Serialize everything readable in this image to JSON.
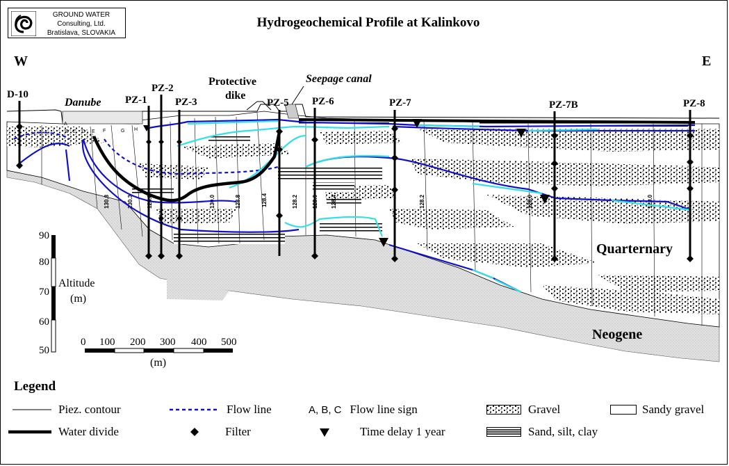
{
  "header": {
    "logo_lines": [
      "GROUND WATER",
      "Consulting, Ltd.",
      "Bratislava, SLOVAKIA"
    ],
    "title": "Hydrogeochemical Profile at Kalinkovo",
    "logo_icon": "spiral-logo-icon"
  },
  "profile": {
    "west_label": "W",
    "east_label": "E",
    "wells": [
      {
        "label": "D-10"
      },
      {
        "label": "PZ-1"
      },
      {
        "label": "PZ-2"
      },
      {
        "label": "PZ-3"
      },
      {
        "label": "PZ-5"
      },
      {
        "label": "PZ-6"
      },
      {
        "label": "PZ-7"
      },
      {
        "label": "PZ-7B"
      },
      {
        "label": "PZ-8"
      }
    ],
    "features": {
      "danube": "Danube",
      "dike_line1": "Protective",
      "dike_line2": "dike",
      "seepage_canal": "Seepage canal",
      "quarternary": "Quarternary",
      "neogene": "Neogene"
    },
    "flow_line_signs": [
      "A",
      "B",
      "C",
      "D",
      "E",
      "F",
      "G",
      "H"
    ],
    "contour_values": [
      "130.8",
      "130.3",
      "128.8",
      "130.0",
      "128.8",
      "128.4",
      "128.2",
      "128.0",
      "128.4",
      "128.2",
      "128.0",
      "128.0"
    ]
  },
  "altitude_scale": {
    "ticks": [
      "90",
      "80",
      "70",
      "60",
      "50"
    ],
    "label_line1": "Altitude",
    "label_line2": "(m)"
  },
  "distance_scale": {
    "ticks": [
      "0",
      "100",
      "200",
      "300",
      "400",
      "500"
    ],
    "unit": "(m)"
  },
  "legend": {
    "title": "Legend",
    "items": [
      {
        "key": "piez",
        "label": "Piez. contour"
      },
      {
        "key": "flow",
        "label": "Flow line"
      },
      {
        "key": "sign",
        "symbol": "A, B, C",
        "label": "Flow line sign"
      },
      {
        "key": "gravel",
        "label": "Gravel"
      },
      {
        "key": "sandy",
        "label": "Sandy gravel"
      },
      {
        "key": "divide",
        "label": "Water divide"
      },
      {
        "key": "filter",
        "label": "Filter"
      },
      {
        "key": "delay",
        "label": "Time delay 1 year"
      },
      {
        "key": "sand",
        "label": "Sand, silt, clay"
      }
    ]
  },
  "colors": {
    "flow_line": "#1010cc",
    "time_delay_line": "#33e0e8",
    "water_divide": "#000000",
    "neogene_fill": "#d8d8d8"
  }
}
